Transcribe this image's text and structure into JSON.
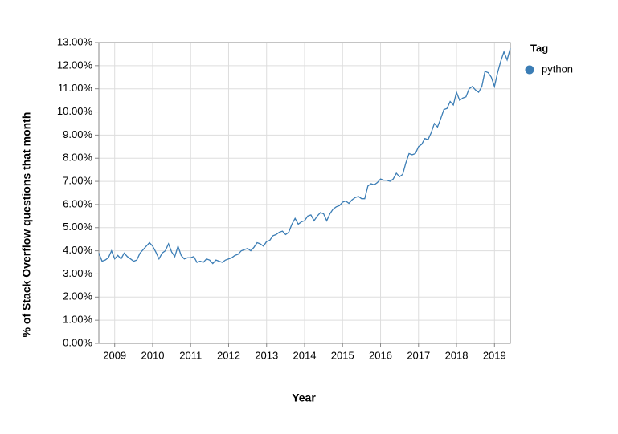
{
  "chart_data": {
    "type": "line",
    "xlabel": "Year",
    "ylabel": "% of Stack Overflow questions that month",
    "legend_title": "Tag",
    "legend": "right",
    "grid": true,
    "x": [
      2008.583,
      2008.667,
      2008.75,
      2008.833,
      2008.917,
      2009,
      2009.083,
      2009.167,
      2009.25,
      2009.333,
      2009.417,
      2009.5,
      2009.583,
      2009.667,
      2009.75,
      2009.833,
      2009.917,
      2010,
      2010.083,
      2010.167,
      2010.25,
      2010.333,
      2010.417,
      2010.5,
      2010.583,
      2010.667,
      2010.75,
      2010.833,
      2010.917,
      2011,
      2011.083,
      2011.167,
      2011.25,
      2011.333,
      2011.417,
      2011.5,
      2011.583,
      2011.667,
      2011.75,
      2011.833,
      2011.917,
      2012,
      2012.083,
      2012.167,
      2012.25,
      2012.333,
      2012.417,
      2012.5,
      2012.583,
      2012.667,
      2012.75,
      2012.833,
      2012.917,
      2013,
      2013.083,
      2013.167,
      2013.25,
      2013.333,
      2013.417,
      2013.5,
      2013.583,
      2013.667,
      2013.75,
      2013.833,
      2013.917,
      2014,
      2014.083,
      2014.167,
      2014.25,
      2014.333,
      2014.417,
      2014.5,
      2014.583,
      2014.667,
      2014.75,
      2014.833,
      2014.917,
      2015,
      2015.083,
      2015.167,
      2015.25,
      2015.333,
      2015.417,
      2015.5,
      2015.583,
      2015.667,
      2015.75,
      2015.833,
      2015.917,
      2016,
      2016.083,
      2016.167,
      2016.25,
      2016.333,
      2016.417,
      2016.5,
      2016.583,
      2016.667,
      2016.75,
      2016.833,
      2016.917,
      2017,
      2017.083,
      2017.167,
      2017.25,
      2017.333,
      2017.417,
      2017.5,
      2017.583,
      2017.667,
      2017.75,
      2017.833,
      2017.917,
      2018,
      2018.083,
      2018.167,
      2018.25,
      2018.333,
      2018.417,
      2018.5,
      2018.583,
      2018.667,
      2018.75,
      2018.833,
      2018.917,
      2019,
      2019.083,
      2019.167,
      2019.25,
      2019.333,
      2019.417
    ],
    "series": [
      {
        "name": "python",
        "color": "#3b7db5",
        "values": [
          3.9,
          3.55,
          3.6,
          3.7,
          4.0,
          3.65,
          3.8,
          3.65,
          3.9,
          3.75,
          3.65,
          3.55,
          3.6,
          3.9,
          4.05,
          4.2,
          4.35,
          4.2,
          3.95,
          3.65,
          3.9,
          4.0,
          4.3,
          3.95,
          3.75,
          4.2,
          3.8,
          3.65,
          3.7,
          3.7,
          3.75,
          3.5,
          3.55,
          3.5,
          3.65,
          3.6,
          3.45,
          3.6,
          3.55,
          3.5,
          3.6,
          3.65,
          3.7,
          3.8,
          3.85,
          4.0,
          4.05,
          4.1,
          4.0,
          4.15,
          4.35,
          4.3,
          4.2,
          4.4,
          4.45,
          4.65,
          4.7,
          4.8,
          4.85,
          4.7,
          4.8,
          5.15,
          5.4,
          5.15,
          5.25,
          5.3,
          5.5,
          5.55,
          5.3,
          5.5,
          5.65,
          5.6,
          5.3,
          5.6,
          5.8,
          5.9,
          5.95,
          6.1,
          6.15,
          6.05,
          6.2,
          6.3,
          6.35,
          6.25,
          6.25,
          6.8,
          6.9,
          6.85,
          6.95,
          7.1,
          7.05,
          7.05,
          7.0,
          7.1,
          7.35,
          7.2,
          7.3,
          7.8,
          8.2,
          8.15,
          8.2,
          8.5,
          8.6,
          8.85,
          8.8,
          9.1,
          9.5,
          9.35,
          9.7,
          10.1,
          10.15,
          10.45,
          10.3,
          10.85,
          10.5,
          10.6,
          10.65,
          11.0,
          11.1,
          10.95,
          10.85,
          11.1,
          11.75,
          11.7,
          11.5,
          11.1,
          11.7,
          12.2,
          12.6,
          12.25,
          12.75
        ]
      }
    ],
    "xlim": [
      2008.583,
      2019.417
    ],
    "xticks": [
      2009,
      2010,
      2011,
      2012,
      2013,
      2014,
      2015,
      2016,
      2017,
      2018,
      2019
    ],
    "ylim": [
      0,
      13
    ],
    "yticks": [
      {
        "value": 0,
        "label": "0.00%"
      },
      {
        "value": 1,
        "label": "1.00%"
      },
      {
        "value": 2,
        "label": "2.00%"
      },
      {
        "value": 3,
        "label": "3.00%"
      },
      {
        "value": 4,
        "label": "4.00%"
      },
      {
        "value": 5,
        "label": "5.00%"
      },
      {
        "value": 6,
        "label": "6.00%"
      },
      {
        "value": 7,
        "label": "7.00%"
      },
      {
        "value": 8,
        "label": "8.00%"
      },
      {
        "value": 9,
        "label": "9.00%"
      },
      {
        "value": 10,
        "label": "10.00%"
      },
      {
        "value": 11,
        "label": "11.00%"
      },
      {
        "value": 12,
        "label": "12.00%"
      },
      {
        "value": 13,
        "label": "13.00%"
      }
    ]
  }
}
